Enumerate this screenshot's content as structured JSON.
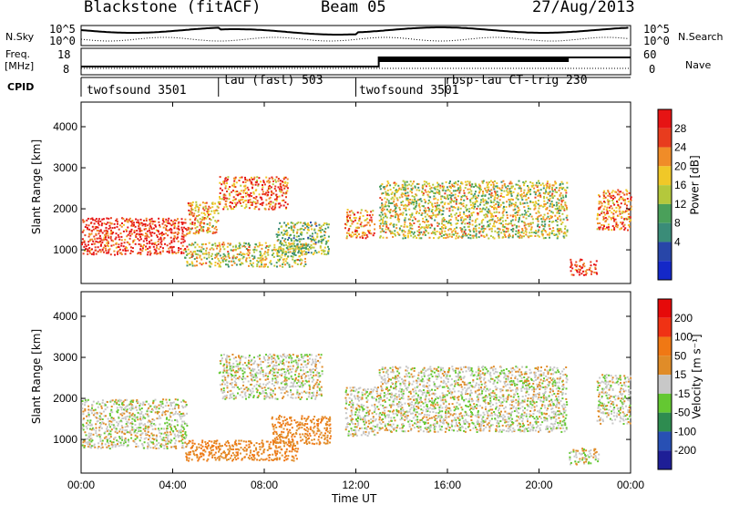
{
  "header": {
    "title": "Blackstone (fitACF)",
    "beam": "Beam 05",
    "date": "27/Aug/2013"
  },
  "labels": {
    "nsky": "N.Sky",
    "nsearch": "N.Search",
    "freq": "Freq.",
    "freq_unit": "[MHz]",
    "nave": "Nave",
    "cpid": "CPID",
    "y_axis": "Slant Range [km]",
    "x_axis": "Time UT",
    "power_label": "Power [dB]",
    "velocity_label": "Velocity [m s⁻¹]",
    "noise_ticks": [
      "10^5",
      "10^0"
    ],
    "freq_ticks": [
      "18",
      "8"
    ],
    "nave_ticks": [
      "60",
      "0"
    ]
  },
  "cpid_segments": [
    {
      "start_hour": 0.0,
      "label": "twofsound 3501"
    },
    {
      "start_hour": 6.0,
      "label": "tau (fast) 503"
    },
    {
      "start_hour": 12.0,
      "label": "twofsound 3501"
    },
    {
      "start_hour": 15.9,
      "label": "rbsp-tau CT-trig 230"
    }
  ],
  "chart_data": {
    "type": "heatmap",
    "x_ticks": [
      "00:00",
      "04:00",
      "08:00",
      "12:00",
      "16:00",
      "20:00",
      "00:00"
    ],
    "x_range_hours": [
      0,
      24
    ],
    "y_ticks": [
      1000,
      2000,
      3000,
      4000
    ],
    "y_range_km": [
      180,
      4600
    ],
    "power_colorbar": {
      "ticks": [
        4,
        8,
        12,
        16,
        20,
        24,
        28
      ],
      "colors": [
        "#1428c8",
        "#2846a8",
        "#3a8c78",
        "#4aa05a",
        "#b4c83c",
        "#f0c828",
        "#f08c28",
        "#e83c1e",
        "#e61414"
      ]
    },
    "velocity_colorbar": {
      "ticks": [
        200,
        100,
        50,
        15,
        -15,
        -50,
        -100,
        -200
      ],
      "colors": [
        "#1e1e96",
        "#2850b4",
        "#2e8c50",
        "#64c832",
        "#c8c8c8",
        "#e08c28",
        "#f07814",
        "#f03214",
        "#e60a0a"
      ]
    },
    "power_features": [
      {
        "t0": 0.0,
        "t1": 4.6,
        "r0": 900,
        "r1": 1800,
        "level": 28
      },
      {
        "t0": 4.6,
        "t1": 6.0,
        "r0": 1400,
        "r1": 2200,
        "level": 20
      },
      {
        "t0": 6.0,
        "t1": 9.0,
        "r0": 2000,
        "r1": 2800,
        "level": 24
      },
      {
        "t0": 4.5,
        "t1": 9.8,
        "r0": 600,
        "r1": 1200,
        "level": 16
      },
      {
        "t0": 8.5,
        "t1": 10.8,
        "r0": 900,
        "r1": 1700,
        "level": 12
      },
      {
        "t0": 11.5,
        "t1": 12.8,
        "r0": 1300,
        "r1": 2000,
        "level": 24
      },
      {
        "t0": 13.0,
        "t1": 21.2,
        "r0": 1300,
        "r1": 2700,
        "level": 16
      },
      {
        "t0": 21.3,
        "t1": 22.5,
        "r0": 400,
        "r1": 800,
        "level": 28
      },
      {
        "t0": 22.5,
        "t1": 24.0,
        "r0": 1500,
        "r1": 2500,
        "level": 24
      }
    ],
    "velocity_features": [
      {
        "t0": 0.0,
        "t1": 4.6,
        "r0": 800,
        "r1": 2000,
        "level": 0
      },
      {
        "t0": 6.0,
        "t1": 10.5,
        "r0": 2000,
        "r1": 3100,
        "level": 0
      },
      {
        "t0": 4.5,
        "t1": 9.5,
        "r0": 500,
        "r1": 1000,
        "level": -50
      },
      {
        "t0": 8.3,
        "t1": 10.9,
        "r0": 900,
        "r1": 1600,
        "level": -50
      },
      {
        "t0": 11.5,
        "t1": 13.0,
        "r0": 1100,
        "r1": 2300,
        "level": 0
      },
      {
        "t0": 13.0,
        "t1": 21.2,
        "r0": 1200,
        "r1": 2800,
        "level": 0
      },
      {
        "t0": 21.3,
        "t1": 22.6,
        "r0": 400,
        "r1": 800,
        "level": 0
      },
      {
        "t0": 22.5,
        "t1": 24.0,
        "r0": 1400,
        "r1": 2600,
        "level": 0
      }
    ]
  }
}
